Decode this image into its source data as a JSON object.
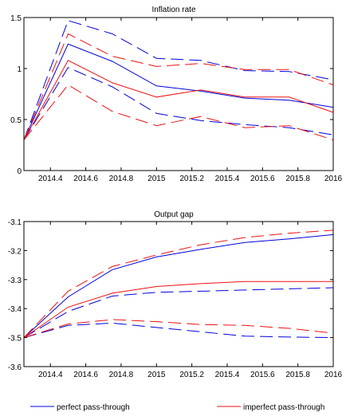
{
  "colors": {
    "perfect": "#0000dd",
    "imperfect": "#ee1111",
    "axis": "#000000"
  },
  "legend": {
    "perfect": "perfect pass-through",
    "imperfect": "imperfect pass-through"
  },
  "chart_data": [
    {
      "type": "line",
      "title": "Inflation rate",
      "xlabel": "",
      "ylabel": "",
      "xlim": [
        2014.25,
        2016
      ],
      "ylim": [
        0,
        1.5
      ],
      "xticks": [
        "2014.4",
        "2014.6",
        "2014.8",
        "2015",
        "2015.2",
        "2015.4",
        "2015.6",
        "2015.8",
        "2016"
      ],
      "yticks": [
        "0",
        "0.5",
        "1",
        "1.5"
      ],
      "grid": false,
      "x": [
        2014.25,
        2014.5,
        2014.75,
        2015,
        2015.25,
        2015.5,
        2015.75,
        2016
      ],
      "series": [
        {
          "group": "perfect",
          "style": "solid",
          "values": [
            0.3,
            1.24,
            1.07,
            0.83,
            0.78,
            0.71,
            0.69,
            0.62
          ]
        },
        {
          "group": "perfect",
          "style": "dashed",
          "values": [
            0.3,
            1.47,
            1.34,
            1.1,
            1.08,
            0.98,
            0.97,
            0.89
          ]
        },
        {
          "group": "perfect",
          "style": "dashed",
          "values": [
            0.3,
            1.01,
            0.82,
            0.56,
            0.49,
            0.45,
            0.42,
            0.35
          ]
        },
        {
          "group": "imperfect",
          "style": "solid",
          "values": [
            0.3,
            1.08,
            0.86,
            0.72,
            0.79,
            0.72,
            0.72,
            0.57
          ]
        },
        {
          "group": "imperfect",
          "style": "dashed",
          "values": [
            0.3,
            1.34,
            1.12,
            1.02,
            1.05,
            0.99,
            0.99,
            0.84
          ]
        },
        {
          "group": "imperfect",
          "style": "dashed",
          "values": [
            0.3,
            0.84,
            0.58,
            0.44,
            0.53,
            0.42,
            0.44,
            0.3
          ]
        }
      ]
    },
    {
      "type": "line",
      "title": "Output gap",
      "xlabel": "",
      "ylabel": "",
      "xlim": [
        2014.25,
        2016
      ],
      "ylim": [
        -3.6,
        -3.1
      ],
      "xticks": [
        "2014.4",
        "2014.6",
        "2014.8",
        "2015",
        "2015.2",
        "2015.4",
        "2015.6",
        "2015.8",
        "2016"
      ],
      "yticks": [
        "-3.6",
        "-3.5",
        "-3.4",
        "-3.3",
        "-3.2",
        "-3.1"
      ],
      "grid": false,
      "x": [
        2014.25,
        2014.5,
        2014.75,
        2015,
        2015.25,
        2015.5,
        2015.75,
        2016
      ],
      "series": [
        {
          "group": "perfect",
          "style": "solid",
          "values": [
            -3.5,
            -3.36,
            -3.266,
            -3.222,
            -3.196,
            -3.172,
            -3.16,
            -3.145
          ]
        },
        {
          "group": "perfect",
          "style": "dashed",
          "values": [
            -3.5,
            -3.458,
            -3.45,
            -3.465,
            -3.48,
            -3.495,
            -3.498,
            -3.5
          ]
        },
        {
          "group": "perfect",
          "style": "dashed",
          "values": [
            -3.5,
            -3.41,
            -3.357,
            -3.344,
            -3.34,
            -3.336,
            -3.332,
            -3.328
          ]
        },
        {
          "group": "imperfect",
          "style": "solid",
          "values": [
            -3.5,
            -3.395,
            -3.347,
            -3.324,
            -3.314,
            -3.307,
            -3.307,
            -3.307
          ]
        },
        {
          "group": "imperfect",
          "style": "dashed",
          "values": [
            -3.5,
            -3.34,
            -3.255,
            -3.215,
            -3.18,
            -3.155,
            -3.14,
            -3.13
          ]
        },
        {
          "group": "imperfect",
          "style": "dashed",
          "values": [
            -3.5,
            -3.453,
            -3.438,
            -3.445,
            -3.455,
            -3.458,
            -3.468,
            -3.485
          ]
        }
      ]
    }
  ]
}
